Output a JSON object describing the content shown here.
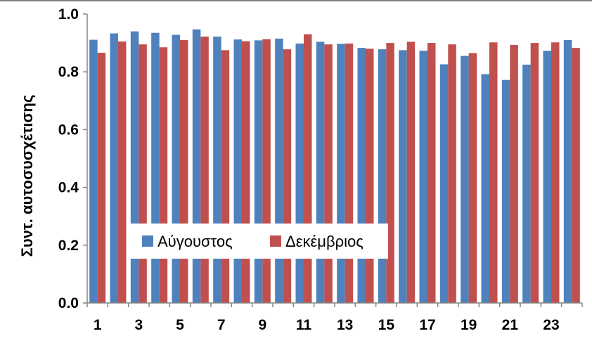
{
  "chart_data": {
    "type": "bar",
    "title": "",
    "xlabel": "",
    "ylabel": "Συντ. αυτοσυσχέτισης",
    "ylim": [
      0,
      1.0
    ],
    "yticks": [
      0.0,
      0.2,
      0.4,
      0.6,
      0.8,
      1.0
    ],
    "ytick_labels": [
      "0.0",
      "0.2",
      "0.4",
      "0.6",
      "0.8",
      "1.0"
    ],
    "categories": [
      1,
      2,
      3,
      4,
      5,
      6,
      7,
      8,
      9,
      10,
      11,
      12,
      13,
      14,
      15,
      16,
      17,
      18,
      19,
      20,
      21,
      22,
      23,
      24
    ],
    "xtick_labels": [
      "1",
      "3",
      "5",
      "7",
      "9",
      "11",
      "13",
      "15",
      "17",
      "19",
      "21",
      "23"
    ],
    "grid": false,
    "legend_position": "bottom-left",
    "series": [
      {
        "name": "Αύγουστος",
        "color": "#4F81BD",
        "values": [
          0.911,
          0.933,
          0.94,
          0.935,
          0.928,
          0.947,
          0.922,
          0.912,
          0.909,
          0.915,
          0.898,
          0.904,
          0.897,
          0.883,
          0.878,
          0.875,
          0.873,
          0.826,
          0.855,
          0.792,
          0.772,
          0.825,
          0.873,
          0.91
        ]
      },
      {
        "name": "Δεκέμβριος",
        "color": "#C0504D",
        "values": [
          0.866,
          0.905,
          0.895,
          0.885,
          0.91,
          0.922,
          0.875,
          0.906,
          0.913,
          0.878,
          0.93,
          0.895,
          0.898,
          0.88,
          0.9,
          0.904,
          0.9,
          0.895,
          0.865,
          0.902,
          0.893,
          0.9,
          0.902,
          0.883
        ]
      }
    ]
  }
}
